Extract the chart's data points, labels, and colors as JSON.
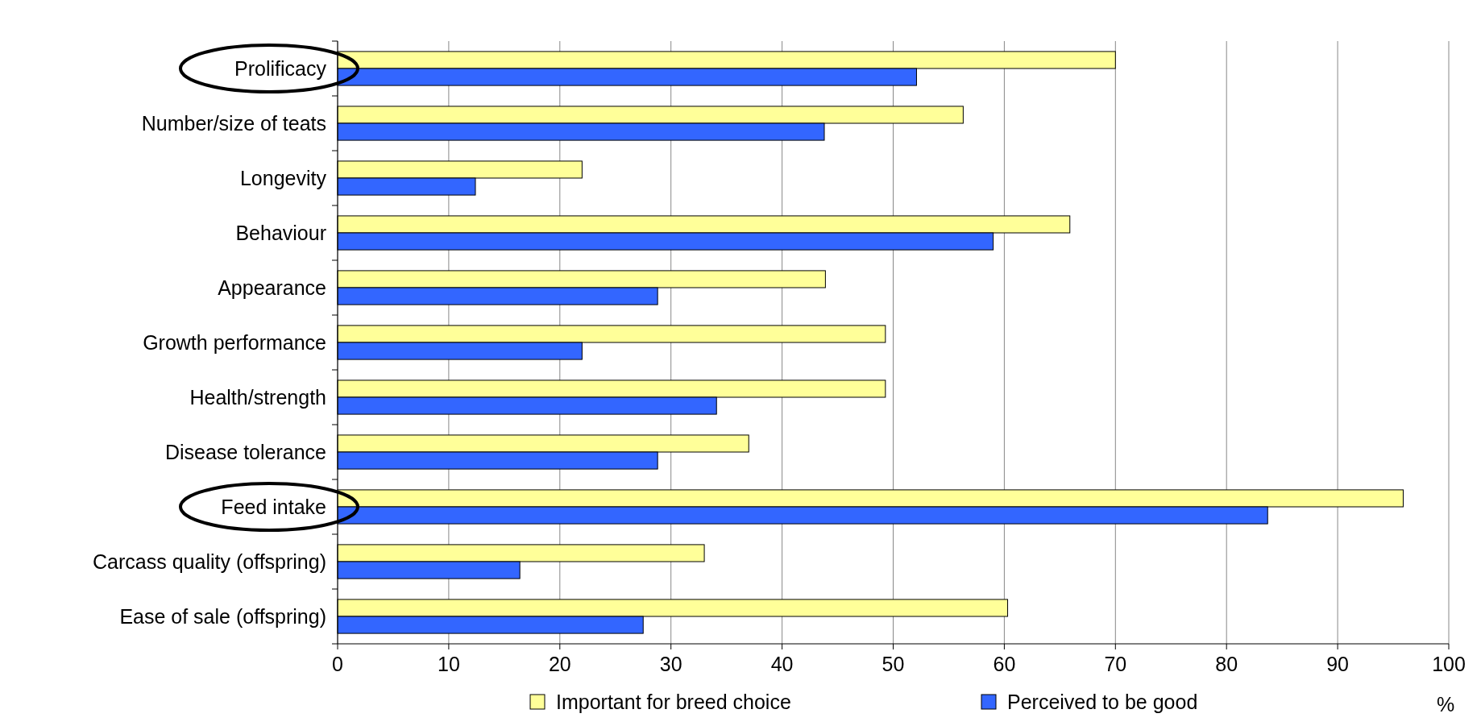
{
  "chart_data": {
    "type": "bar",
    "orientation": "horizontal",
    "xlabel": "%",
    "categories": [
      "Prolificacy",
      "Number/size of teats",
      "Longevity",
      "Behaviour",
      "Appearance",
      "Growth performance",
      "Health/strength",
      "Disease tolerance",
      "Feed intake",
      "Carcass quality (offspring)",
      "Ease of sale (offspring)"
    ],
    "series": [
      {
        "name": "Important for breed choice",
        "color": "#ffff99",
        "values": [
          70,
          56.3,
          22,
          65.9,
          43.9,
          49.3,
          49.3,
          37,
          95.9,
          33,
          60.3
        ]
      },
      {
        "name": "Perceived to be good",
        "color": "#3366ff",
        "values": [
          52.1,
          43.8,
          12.4,
          59,
          28.8,
          22,
          34.1,
          28.8,
          83.7,
          16.4,
          27.5
        ]
      }
    ],
    "xlim": [
      0,
      100
    ],
    "xticks": [
      0,
      10,
      20,
      30,
      40,
      50,
      60,
      70,
      80,
      90,
      100
    ],
    "grid": "x",
    "legend": "bottom"
  }
}
